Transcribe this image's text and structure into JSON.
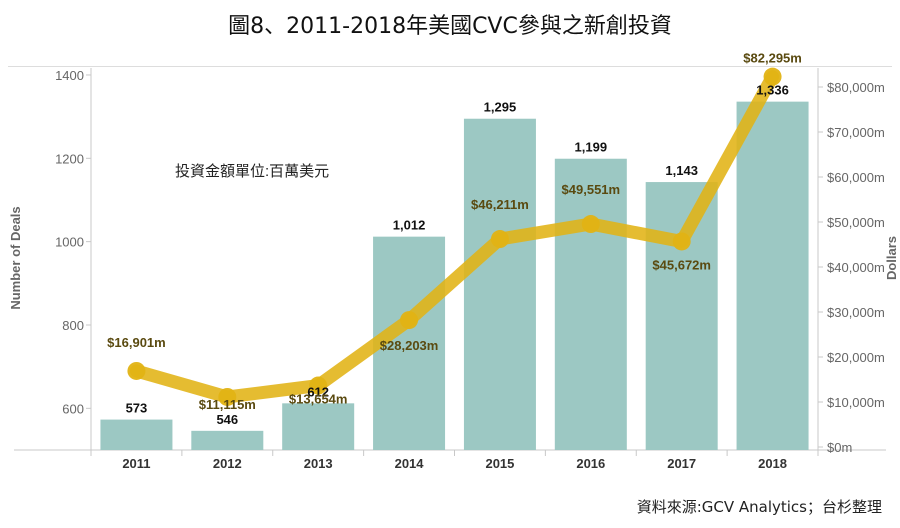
{
  "title": "圖8、2011-2018年美國CVC參與之新創投資",
  "source": "資料來源:GCV Analytics；台杉整理",
  "chart_data": {
    "type": "bar",
    "categories": [
      "2011",
      "2012",
      "2013",
      "2014",
      "2015",
      "2016",
      "2017",
      "2018"
    ],
    "series": [
      {
        "name": "Number of Deals",
        "type": "bar",
        "axis": "left",
        "values": [
          573,
          546,
          612,
          1012,
          1295,
          1199,
          1143,
          1336
        ],
        "labels": [
          "573",
          "546",
          "612",
          "1,012",
          "1,295",
          "1,199",
          "1,143",
          "1,336"
        ],
        "color": "#9cc8c3"
      },
      {
        "name": "Dollars",
        "type": "line",
        "axis": "right",
        "values": [
          16901,
          11115,
          13654,
          28203,
          46211,
          49551,
          45672,
          82295
        ],
        "labels": [
          "$16,901m",
          "$11,115m",
          "$13,654m",
          "$28,203m",
          "$46,211m",
          "$49,551m",
          "$45,672m",
          "$82,295m"
        ],
        "color": "#e1b314"
      }
    ],
    "y_left": {
      "label": "Number of Deals",
      "range": [
        500,
        1400
      ],
      "ticks": [
        600,
        800,
        1000,
        1200,
        1400
      ],
      "tick_labels": [
        "600",
        "800",
        "1000",
        "1200",
        "1400"
      ]
    },
    "y_right": {
      "label": "Dollars",
      "range": [
        0,
        82295
      ],
      "ticks": [
        0,
        10000,
        20000,
        30000,
        40000,
        50000,
        60000,
        70000,
        80000
      ],
      "tick_labels": [
        "$0m",
        "$10,000m",
        "$20,000m",
        "$30,000m",
        "$40,000m",
        "$50,000m",
        "$60,000m",
        "$70,000m",
        "$80,000m"
      ]
    },
    "annotation": "投資金額單位:百萬美元",
    "grid": false
  }
}
